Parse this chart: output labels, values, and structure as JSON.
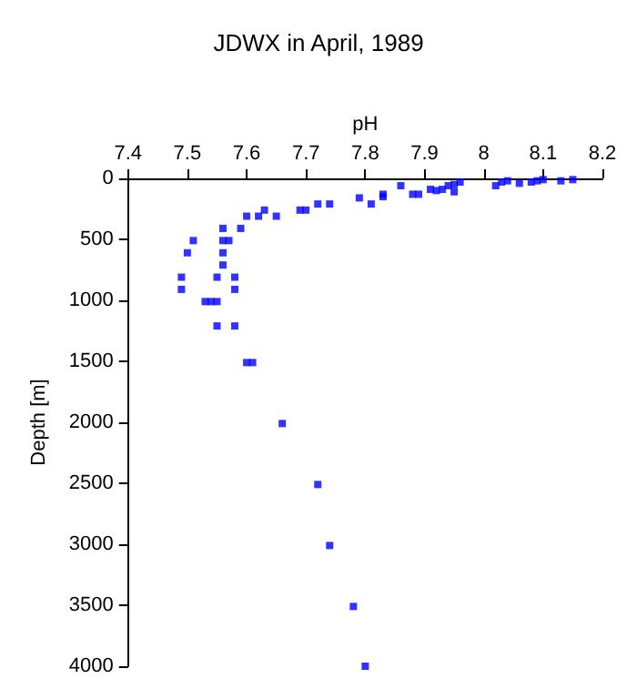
{
  "chart_data": {
    "type": "scatter",
    "title": "JDWX in April, 1989",
    "xlabel": "pH",
    "ylabel": "Depth [m]",
    "x": [
      7.56,
      7.59,
      7.6,
      7.62,
      7.63,
      7.65,
      7.69,
      7.7,
      7.72,
      7.74,
      7.79,
      7.81,
      7.83,
      7.83,
      7.86,
      7.88,
      7.89,
      7.91,
      7.92,
      7.93,
      7.94,
      7.95,
      7.95,
      7.96,
      8.02,
      8.03,
      8.04,
      8.06,
      8.08,
      8.09,
      8.1,
      8.13,
      8.15,
      7.51,
      7.56,
      7.57,
      7.5,
      7.56,
      7.56,
      7.49,
      7.55,
      7.58,
      7.49,
      7.58,
      7.53,
      7.54,
      7.55,
      7.55,
      7.58,
      7.6,
      7.61,
      7.66,
      7.72,
      7.74,
      7.78,
      7.8
    ],
    "values": [
      410,
      410,
      310,
      310,
      260,
      310,
      260,
      260,
      210,
      210,
      160,
      210,
      130,
      150,
      60,
      130,
      130,
      90,
      100,
      90,
      60,
      110,
      50,
      30,
      60,
      30,
      20,
      40,
      30,
      20,
      10,
      20,
      10,
      510,
      510,
      510,
      610,
      610,
      710,
      810,
      810,
      810,
      910,
      910,
      1010,
      1010,
      1010,
      1210,
      1210,
      1510,
      1510,
      2010,
      2510,
      3010,
      3510,
      4000
    ],
    "color": "#0000ff",
    "marker": "square",
    "xlim": [
      7.4,
      8.2
    ],
    "xticks": [
      7.4,
      7.5,
      7.6,
      7.7,
      7.8,
      7.9,
      {
        "value": 8,
        "label": "8"
      },
      8.1,
      8.2
    ],
    "ylim": [
      4000,
      0
    ],
    "yticks": [
      0,
      500,
      1000,
      1500,
      2000,
      2500,
      3000,
      3500,
      4000
    ],
    "grid": false
  }
}
